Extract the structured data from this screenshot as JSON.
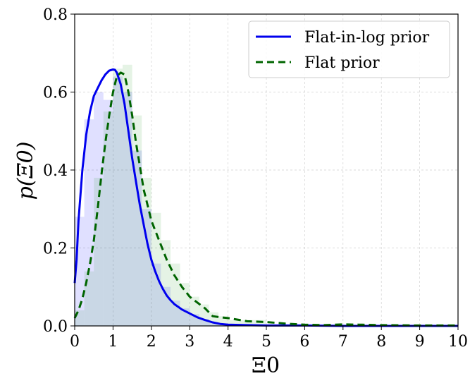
{
  "chart_data": {
    "type": "line",
    "xlabel": "Ξ0",
    "ylabel": "p(Ξ0)",
    "xlim": [
      0,
      10
    ],
    "ylim": [
      0,
      0.8
    ],
    "x_ticks": [
      "0",
      "1",
      "2",
      "3",
      "4",
      "5",
      "6",
      "7",
      "8",
      "9",
      "10"
    ],
    "y_ticks": [
      "0.0",
      "0.2",
      "0.4",
      "0.6",
      "0.8"
    ],
    "x_tick_values": [
      0,
      1,
      2,
      3,
      4,
      5,
      6,
      7,
      8,
      9,
      10
    ],
    "y_tick_values": [
      0,
      0.2,
      0.4,
      0.6,
      0.8
    ],
    "grid": true,
    "legend_position": "top-right",
    "series": [
      {
        "name": "Flat-in-log prior",
        "color": "#0000ee",
        "style": "solid",
        "x": [
          0,
          0.05,
          0.1,
          0.2,
          0.3,
          0.4,
          0.5,
          0.6,
          0.7,
          0.8,
          0.9,
          1.0,
          1.05,
          1.1,
          1.2,
          1.3,
          1.4,
          1.5,
          1.6,
          1.7,
          1.8,
          1.9,
          2.0,
          2.1,
          2.2,
          2.3,
          2.4,
          2.5,
          2.6,
          2.8,
          3.0,
          3.2,
          3.4,
          3.6,
          3.8,
          4.0,
          4.5,
          5.0,
          6.0,
          7.0,
          8.0,
          9.0,
          10.0
        ],
        "y": [
          0.11,
          0.17,
          0.27,
          0.4,
          0.49,
          0.55,
          0.59,
          0.61,
          0.63,
          0.645,
          0.655,
          0.658,
          0.657,
          0.65,
          0.62,
          0.57,
          0.5,
          0.43,
          0.37,
          0.31,
          0.26,
          0.21,
          0.17,
          0.14,
          0.115,
          0.095,
          0.078,
          0.066,
          0.056,
          0.042,
          0.032,
          0.022,
          0.015,
          0.009,
          0.005,
          0.003,
          0.002,
          0.001,
          0.001,
          0.0,
          0.0,
          0.0,
          0.0
        ]
      },
      {
        "name": "Flat prior",
        "color": "#006400",
        "style": "dashed",
        "x": [
          0,
          0.1,
          0.2,
          0.3,
          0.4,
          0.5,
          0.6,
          0.7,
          0.8,
          0.9,
          1.0,
          1.1,
          1.2,
          1.3,
          1.4,
          1.5,
          1.6,
          1.7,
          1.8,
          1.9,
          2.0,
          2.2,
          2.4,
          2.6,
          2.8,
          3.0,
          3.2,
          3.4,
          3.6,
          3.8,
          4.0,
          4.5,
          5.0,
          5.5,
          6.0,
          6.5,
          7.0,
          7.5,
          8.0,
          9.0,
          10.0
        ],
        "y": [
          0.02,
          0.04,
          0.07,
          0.11,
          0.16,
          0.22,
          0.3,
          0.39,
          0.47,
          0.54,
          0.6,
          0.64,
          0.65,
          0.645,
          0.6,
          0.54,
          0.47,
          0.41,
          0.35,
          0.31,
          0.27,
          0.22,
          0.17,
          0.13,
          0.1,
          0.075,
          0.06,
          0.045,
          0.025,
          0.022,
          0.02,
          0.012,
          0.01,
          0.006,
          0.003,
          0.002,
          0.004,
          0.003,
          0.002,
          0.001,
          0.001
        ]
      }
    ],
    "histograms": [
      {
        "series": "Flat-in-log prior",
        "color": "#0000ff",
        "opacity": 0.12,
        "bin_edges": [
          0,
          0.25,
          0.5,
          0.75,
          1.0,
          1.25,
          1.5,
          1.75,
          2.0,
          2.25,
          2.5,
          2.75,
          3.0,
          3.25,
          3.5,
          3.75,
          4.0
        ],
        "values": [
          0.28,
          0.53,
          0.6,
          0.58,
          0.64,
          0.6,
          0.45,
          0.3,
          0.16,
          0.1,
          0.065,
          0.045,
          0.03,
          0.018,
          0.01,
          0.006
        ]
      },
      {
        "series": "Flat prior",
        "color": "#2ca02c",
        "opacity": 0.12,
        "bin_edges": [
          0,
          0.25,
          0.5,
          0.75,
          1.0,
          1.25,
          1.5,
          1.75,
          2.0,
          2.25,
          2.5,
          2.75,
          3.0,
          3.25,
          3.5,
          3.75,
          4.0,
          5.0
        ],
        "values": [
          0.04,
          0.14,
          0.38,
          0.55,
          0.66,
          0.67,
          0.54,
          0.38,
          0.29,
          0.22,
          0.16,
          0.11,
          0.075,
          0.055,
          0.035,
          0.025,
          0.015
        ]
      }
    ]
  }
}
